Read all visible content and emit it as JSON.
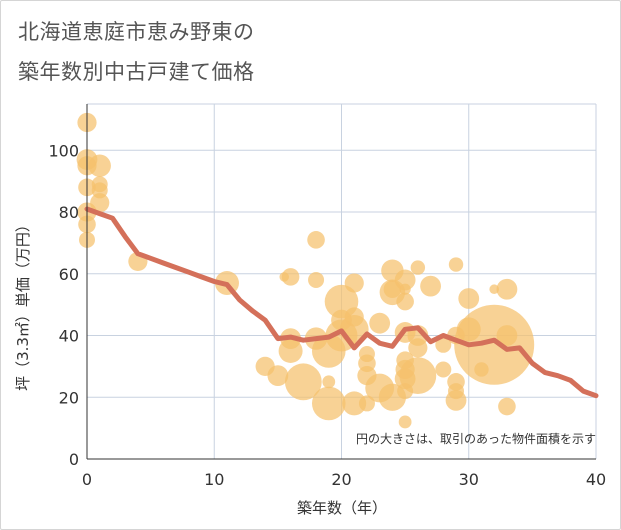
{
  "title_line1": "北海道恵庭市恵み野東の",
  "title_line2": "築年数別中古戸建て価格",
  "chart_data": {
    "type": "scatter",
    "title": "北海道恵庭市恵み野東の築年数別中古戸建て価格",
    "xlabel": "築年数（年）",
    "ylabel": "坪（3.3㎡）単価（万円）",
    "xlim": [
      0,
      40
    ],
    "ylim": [
      0,
      115
    ],
    "xticks": [
      "0",
      "10",
      "20",
      "30",
      "40"
    ],
    "yticks": [
      "0",
      "20",
      "40",
      "60",
      "80",
      "100"
    ],
    "grid": true,
    "note": "円の大きさは、取引のあった物件面積を示す",
    "colors": {
      "bubble": "#f5c16c",
      "line": "#d4705a",
      "grid": "#c8d2e0"
    },
    "series": [
      {
        "type": "bubble",
        "points": [
          {
            "x": 0,
            "y": 109,
            "s": 1.2
          },
          {
            "x": 0,
            "y": 97,
            "s": 1.3
          },
          {
            "x": 0,
            "y": 95,
            "s": 1.2
          },
          {
            "x": 0,
            "y": 88,
            "s": 1.1
          },
          {
            "x": 0,
            "y": 80,
            "s": 1.2
          },
          {
            "x": 0,
            "y": 76,
            "s": 1.1
          },
          {
            "x": 0,
            "y": 71,
            "s": 1.0
          },
          {
            "x": 1,
            "y": 95,
            "s": 1.4
          },
          {
            "x": 1,
            "y": 89,
            "s": 1.0
          },
          {
            "x": 1,
            "y": 87,
            "s": 1.0
          },
          {
            "x": 1,
            "y": 83,
            "s": 1.2
          },
          {
            "x": 4,
            "y": 64,
            "s": 1.2
          },
          {
            "x": 11,
            "y": 57,
            "s": 1.5
          },
          {
            "x": 14,
            "y": 30,
            "s": 1.2
          },
          {
            "x": 15,
            "y": 27,
            "s": 1.3
          },
          {
            "x": 15.5,
            "y": 59,
            "s": 0.6
          },
          {
            "x": 16,
            "y": 59,
            "s": 1.1
          },
          {
            "x": 16,
            "y": 39,
            "s": 1.3
          },
          {
            "x": 16,
            "y": 35,
            "s": 1.5
          },
          {
            "x": 17,
            "y": 25,
            "s": 2.3
          },
          {
            "x": 18,
            "y": 71,
            "s": 1.1
          },
          {
            "x": 18,
            "y": 58,
            "s": 1.0
          },
          {
            "x": 18,
            "y": 39,
            "s": 1.4
          },
          {
            "x": 19,
            "y": 35,
            "s": 2.1
          },
          {
            "x": 19,
            "y": 25,
            "s": 0.8
          },
          {
            "x": 19,
            "y": 18,
            "s": 2.1
          },
          {
            "x": 20,
            "y": 51,
            "s": 2.1
          },
          {
            "x": 20,
            "y": 45,
            "s": 1.3
          },
          {
            "x": 20,
            "y": 40,
            "s": 2.0
          },
          {
            "x": 21,
            "y": 57,
            "s": 1.2
          },
          {
            "x": 21,
            "y": 46,
            "s": 1.2
          },
          {
            "x": 21,
            "y": 42,
            "s": 1.8
          },
          {
            "x": 21,
            "y": 18,
            "s": 1.5
          },
          {
            "x": 22,
            "y": 34,
            "s": 1.0
          },
          {
            "x": 22,
            "y": 31,
            "s": 1.1
          },
          {
            "x": 22,
            "y": 27,
            "s": 1.2
          },
          {
            "x": 22,
            "y": 18,
            "s": 1.0
          },
          {
            "x": 23,
            "y": 44,
            "s": 1.3
          },
          {
            "x": 23,
            "y": 23,
            "s": 1.8
          },
          {
            "x": 24,
            "y": 61,
            "s": 1.4
          },
          {
            "x": 24,
            "y": 55,
            "s": 1.1
          },
          {
            "x": 24,
            "y": 54,
            "s": 1.6
          },
          {
            "x": 24,
            "y": 20,
            "s": 1.7
          },
          {
            "x": 25,
            "y": 58,
            "s": 1.3
          },
          {
            "x": 25,
            "y": 55,
            "s": 0.7
          },
          {
            "x": 25,
            "y": 51,
            "s": 1.1
          },
          {
            "x": 25,
            "y": 41,
            "s": 1.3
          },
          {
            "x": 25,
            "y": 32,
            "s": 1.1
          },
          {
            "x": 25,
            "y": 29,
            "s": 1.2
          },
          {
            "x": 25,
            "y": 26,
            "s": 1.3
          },
          {
            "x": 25,
            "y": 22,
            "s": 1.0
          },
          {
            "x": 25,
            "y": 12,
            "s": 0.8
          },
          {
            "x": 26,
            "y": 62,
            "s": 0.9
          },
          {
            "x": 26,
            "y": 40,
            "s": 1.3
          },
          {
            "x": 26,
            "y": 36,
            "s": 1.2
          },
          {
            "x": 26,
            "y": 27,
            "s": 2.3
          },
          {
            "x": 27,
            "y": 56,
            "s": 1.3
          },
          {
            "x": 28,
            "y": 37,
            "s": 1.0
          },
          {
            "x": 28,
            "y": 29,
            "s": 1.0
          },
          {
            "x": 29,
            "y": 63,
            "s": 0.9
          },
          {
            "x": 29,
            "y": 40,
            "s": 1.1
          },
          {
            "x": 29,
            "y": 25,
            "s": 1.1
          },
          {
            "x": 29,
            "y": 22,
            "s": 1.0
          },
          {
            "x": 29,
            "y": 19,
            "s": 1.3
          },
          {
            "x": 30,
            "y": 52,
            "s": 1.3
          },
          {
            "x": 30,
            "y": 42,
            "s": 1.5
          },
          {
            "x": 31,
            "y": 29,
            "s": 0.9
          },
          {
            "x": 32,
            "y": 55,
            "s": 0.6
          },
          {
            "x": 32,
            "y": 37,
            "s": 5.0
          },
          {
            "x": 33,
            "y": 55,
            "s": 1.3
          },
          {
            "x": 33,
            "y": 40,
            "s": 1.3
          },
          {
            "x": 33,
            "y": 17,
            "s": 1.1
          }
        ]
      },
      {
        "type": "line",
        "points": [
          [
            0,
            81
          ],
          [
            1,
            79.5
          ],
          [
            2,
            78
          ],
          [
            3,
            72
          ],
          [
            4,
            66.5
          ],
          [
            5,
            65
          ],
          [
            6,
            63.5
          ],
          [
            7,
            62
          ],
          [
            8,
            60.5
          ],
          [
            9,
            59
          ],
          [
            10,
            57.5
          ],
          [
            11,
            56.5
          ],
          [
            12,
            51.5
          ],
          [
            13,
            48
          ],
          [
            14,
            45
          ],
          [
            15,
            39
          ],
          [
            16,
            39.5
          ],
          [
            17,
            38.5
          ],
          [
            18,
            39
          ],
          [
            19,
            39.5
          ],
          [
            20,
            41.5
          ],
          [
            21,
            36
          ],
          [
            22,
            40.5
          ],
          [
            23,
            37.5
          ],
          [
            24,
            36.5
          ],
          [
            25,
            42
          ],
          [
            26,
            42.5
          ],
          [
            27,
            38
          ],
          [
            28,
            40
          ],
          [
            29,
            38.5
          ],
          [
            30,
            37
          ],
          [
            31,
            37.5
          ],
          [
            32,
            38.5
          ],
          [
            33,
            35.5
          ],
          [
            34,
            36
          ],
          [
            35,
            31
          ],
          [
            36,
            28
          ],
          [
            37,
            27
          ],
          [
            38,
            25.5
          ],
          [
            39,
            22
          ],
          [
            40,
            20.5
          ]
        ]
      }
    ]
  }
}
